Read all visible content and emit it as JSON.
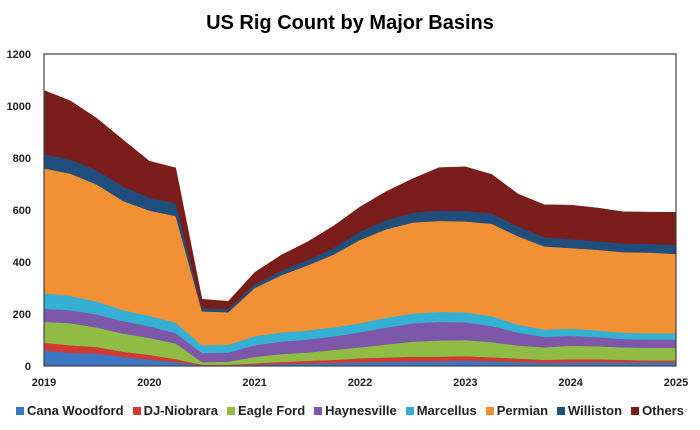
{
  "chart_data": {
    "type": "area",
    "stacked": true,
    "title": "US Rig Count by Major Basins",
    "xlabel": "",
    "ylabel": "",
    "xlim": [
      2019,
      2025
    ],
    "ylim": [
      0,
      1200
    ],
    "x_ticks": [
      "2019",
      "2020",
      "2021",
      "2022",
      "2023",
      "2024",
      "2025"
    ],
    "y_ticks": [
      "0",
      "200",
      "400",
      "600",
      "800",
      "1000",
      "1200"
    ],
    "grid": false,
    "legend_position": "bottom",
    "x": [
      2019.0,
      2019.25,
      2019.5,
      2019.75,
      2020.0,
      2020.25,
      2020.5,
      2020.75,
      2021.0,
      2021.25,
      2021.5,
      2021.75,
      2022.0,
      2022.25,
      2022.5,
      2022.75,
      2023.0,
      2023.25,
      2023.5,
      2023.75,
      2024.0,
      2024.25,
      2024.5,
      2024.75,
      2025.0
    ],
    "series": [
      {
        "name": "Cana Woodford",
        "color": "#3a76c2",
        "values": [
          60,
          50,
          48,
          35,
          25,
          15,
          3,
          3,
          5,
          8,
          10,
          12,
          15,
          16,
          18,
          18,
          20,
          18,
          15,
          12,
          14,
          14,
          14,
          14,
          14
        ]
      },
      {
        "name": "DJ-Niobrara",
        "color": "#d03a35",
        "values": [
          30,
          30,
          25,
          20,
          18,
          12,
          2,
          2,
          5,
          8,
          10,
          12,
          15,
          17,
          18,
          18,
          18,
          16,
          14,
          12,
          12,
          12,
          10,
          8,
          8
        ]
      },
      {
        "name": "Eagle Ford",
        "color": "#8fbc45",
        "values": [
          80,
          85,
          75,
          70,
          65,
          60,
          10,
          12,
          25,
          30,
          32,
          38,
          42,
          50,
          58,
          62,
          62,
          58,
          50,
          48,
          52,
          50,
          48,
          48,
          48
        ]
      },
      {
        "name": "Haynesville",
        "color": "#7e57a8",
        "values": [
          50,
          50,
          50,
          48,
          45,
          40,
          35,
          35,
          45,
          48,
          50,
          52,
          58,
          65,
          70,
          72,
          68,
          62,
          50,
          40,
          38,
          35,
          32,
          32,
          32
        ]
      },
      {
        "name": "Marcellus",
        "color": "#33b0d2",
        "values": [
          60,
          55,
          50,
          42,
          40,
          40,
          30,
          30,
          35,
          35,
          35,
          35,
          35,
          38,
          38,
          38,
          38,
          38,
          30,
          28,
          28,
          26,
          24,
          24,
          24
        ]
      },
      {
        "name": "Permian",
        "color": "#f29133",
        "values": [
          480,
          470,
          450,
          420,
          405,
          410,
          130,
          125,
          185,
          220,
          250,
          280,
          320,
          340,
          350,
          350,
          350,
          355,
          340,
          320,
          310,
          310,
          310,
          310,
          305
        ]
      },
      {
        "name": "Williston",
        "color": "#1f4e7d",
        "values": [
          55,
          55,
          55,
          55,
          50,
          50,
          12,
          12,
          15,
          17,
          20,
          25,
          32,
          35,
          38,
          40,
          40,
          40,
          38,
          35,
          35,
          33,
          33,
          34,
          35
        ]
      },
      {
        "name": "Others",
        "color": "#7a1c1a",
        "values": [
          245,
          225,
          200,
          180,
          140,
          135,
          35,
          30,
          45,
          60,
          70,
          85,
          95,
          110,
          130,
          165,
          170,
          150,
          125,
          125,
          130,
          128,
          122,
          122,
          125
        ]
      }
    ]
  }
}
